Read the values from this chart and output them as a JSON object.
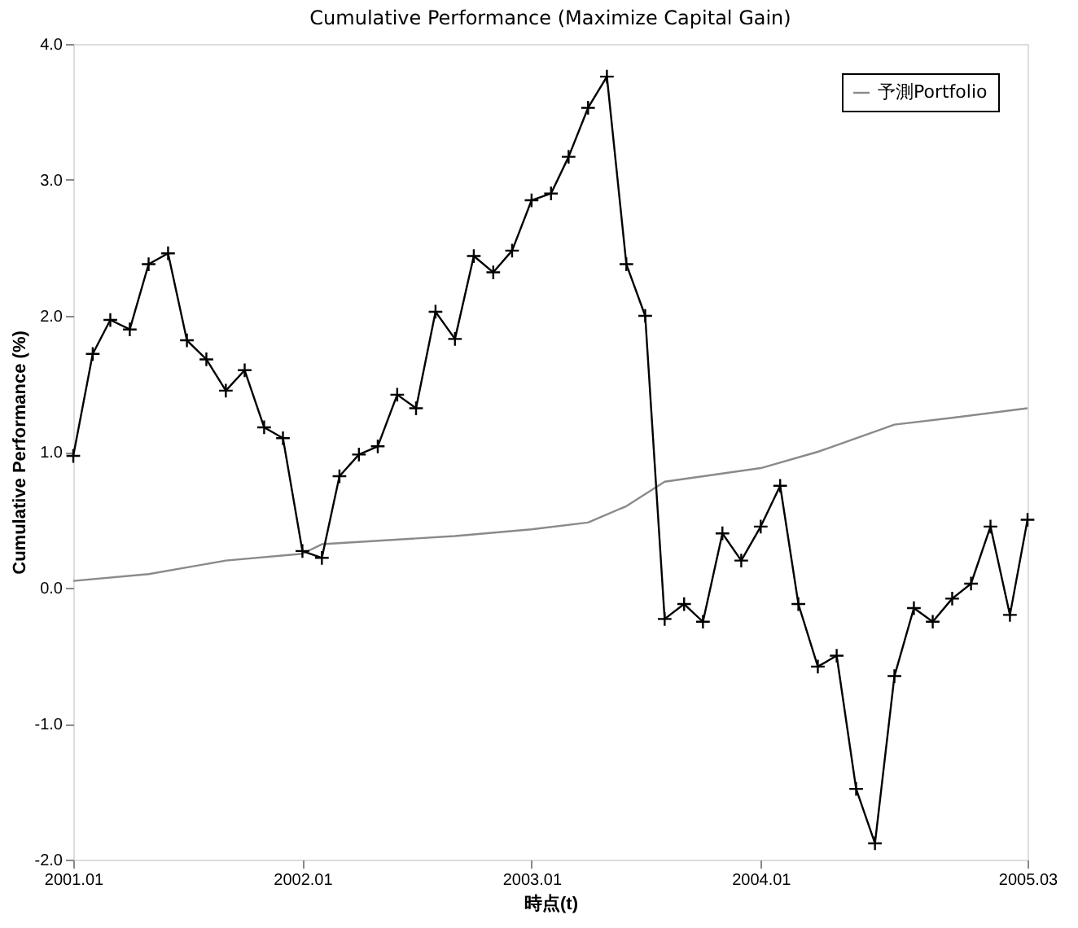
{
  "chart_data": {
    "type": "line",
    "title": "Cumulative Performance (Maximize Capital Gain)",
    "xlabel": "時点(t)",
    "ylabel": "Cumulative Performance (%)",
    "xlim": [
      "2001-01",
      "2005-03"
    ],
    "xticks": [
      {
        "value": "2001-01",
        "label": "2001.01"
      },
      {
        "value": "2002-01",
        "label": "2002.01"
      },
      {
        "value": "2003-01",
        "label": "2003.01"
      },
      {
        "value": "2004-01",
        "label": "2004.01"
      },
      {
        "value": "2005-03",
        "label": "2005.03"
      }
    ],
    "ylim": [
      -2,
      4
    ],
    "yticks": [
      {
        "value": -2,
        "label": "-2.0"
      },
      {
        "value": -1,
        "label": "-1.0"
      },
      {
        "value": 0,
        "label": "0.0"
      },
      {
        "value": 1,
        "label": "1.0"
      },
      {
        "value": 2,
        "label": "2.0"
      },
      {
        "value": 3,
        "label": "3.0"
      },
      {
        "value": 4,
        "label": "4.0"
      }
    ],
    "grid": false,
    "legend": "top right",
    "line_style": "solid",
    "series": [
      {
        "name": "予測Portfolio",
        "color": "#8a8a8a",
        "marker": "none",
        "x": [
          "2001-01",
          "2001-05",
          "2001-09",
          "2002-01",
          "2002-02",
          "2002-09",
          "2003-01",
          "2003-04",
          "2003-06",
          "2003-08",
          "2004-01",
          "2004-04",
          "2004-06",
          "2004-08",
          "2004-11",
          "2005-03"
        ],
        "values": [
          0.05,
          0.1,
          0.2,
          0.25,
          0.32,
          0.38,
          0.43,
          0.48,
          0.6,
          0.78,
          0.88,
          1.0,
          1.1,
          1.2,
          1.25,
          1.32
        ]
      },
      {
        "color": "#000000",
        "marker": "cross",
        "x": [
          "2001-01",
          "2001-02",
          "2001-03",
          "2001-04",
          "2001-05",
          "2001-06",
          "2001-07",
          "2001-08",
          "2001-09",
          "2001-10",
          "2001-11",
          "2001-12",
          "2002-01",
          "2002-02",
          "2002-03",
          "2002-04",
          "2002-05",
          "2002-06",
          "2002-07",
          "2002-08",
          "2002-09",
          "2002-10",
          "2002-11",
          "2002-12",
          "2003-01",
          "2003-02",
          "2003-03",
          "2003-04",
          "2003-05",
          "2003-06",
          "2003-07",
          "2003-08",
          "2003-09",
          "2003-10",
          "2003-11",
          "2003-12",
          "2004-01",
          "2004-02",
          "2004-03",
          "2004-04",
          "2004-05",
          "2004-06",
          "2004-07",
          "2004-08",
          "2004-09",
          "2004-10",
          "2004-11",
          "2004-12",
          "2005-01",
          "2005-02",
          "2005-03"
        ],
        "values": [
          0.97,
          1.72,
          1.97,
          1.9,
          2.38,
          2.46,
          1.82,
          1.68,
          1.45,
          1.6,
          1.18,
          1.1,
          0.27,
          0.22,
          0.82,
          0.98,
          1.04,
          1.42,
          1.32,
          2.03,
          1.83,
          2.44,
          2.32,
          2.48,
          2.85,
          2.9,
          3.17,
          3.53,
          3.76,
          2.38,
          2.0,
          -0.23,
          -0.12,
          -0.25,
          0.4,
          0.2,
          0.45,
          0.75,
          -0.12,
          -0.58,
          -0.5,
          -1.48,
          -1.88,
          -0.65,
          -0.15,
          -0.25,
          -0.08,
          0.03,
          0.45,
          -0.2,
          0.5
        ]
      }
    ]
  }
}
